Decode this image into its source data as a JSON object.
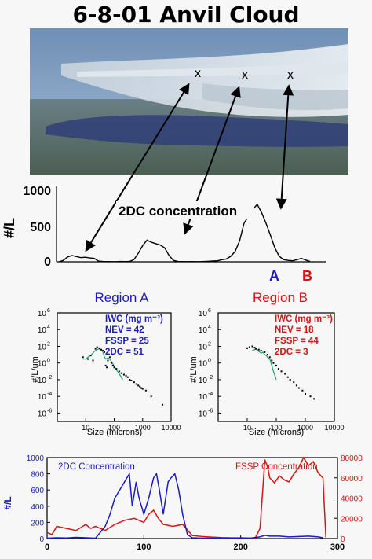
{
  "title": "6-8-01 Anvil Cloud",
  "photo_markers": [
    "x",
    "x",
    "x"
  ],
  "colors": {
    "blue": "#1a1acc",
    "red": "#dd1111",
    "green": "#2ea86f",
    "black": "#000000"
  },
  "chart_data": [
    {
      "type": "line",
      "ylabel": "#/L",
      "yticks": [
        "0",
        "500",
        "1000"
      ],
      "ylim": [
        0,
        1100
      ],
      "xlim": [
        0,
        300
      ],
      "annotation": "2DC concentration",
      "region_labels": [
        "A",
        "B"
      ],
      "x": [
        0,
        5,
        10,
        15,
        20,
        25,
        30,
        35,
        40,
        45,
        50,
        55,
        60,
        65,
        70,
        75,
        80,
        85,
        90,
        95,
        100,
        105,
        110,
        115,
        120,
        125,
        130,
        135,
        140,
        145,
        150,
        155,
        160,
        165,
        170,
        175,
        180,
        185,
        190,
        195,
        200,
        205,
        210,
        215,
        220,
        225,
        230,
        235,
        240,
        245,
        250,
        255,
        260,
        265,
        270,
        275,
        280,
        285
      ],
      "values": [
        0,
        20,
        70,
        90,
        75,
        60,
        65,
        55,
        50,
        10,
        5,
        3,
        2,
        2,
        5,
        3,
        4,
        30,
        120,
        230,
        310,
        280,
        260,
        240,
        200,
        90,
        20,
        5,
        3,
        2,
        3,
        2,
        2,
        5,
        8,
        12,
        15,
        30,
        40,
        80,
        150,
        300,
        550,
        650,
        750,
        820,
        700,
        550,
        380,
        200,
        80,
        30,
        20,
        15,
        30,
        50,
        25,
        5
      ]
    },
    {
      "type": "scatter",
      "title": "Region  A",
      "xlabel": "Size (microns)",
      "ylabel": "#/L/um",
      "xticks": [
        "10",
        "100",
        "1000",
        "10000"
      ],
      "yticks": [
        "10",
        "10",
        "10",
        "10",
        "10",
        "10",
        "10"
      ],
      "ytick_exponents": [
        "6",
        "4",
        "2",
        "0",
        "-2",
        "-4",
        "-6"
      ],
      "xlim": [
        1,
        10000
      ],
      "ylim": [
        1e-07,
        1000000.0
      ],
      "scale": "log-log",
      "legend": [
        "IWC (mg m⁻³)",
        "NEV = 42",
        "FSSP = 25",
        "2DC = 51"
      ],
      "points_x": [
        8,
        12,
        15,
        18,
        22,
        25,
        30,
        35,
        40,
        45,
        50,
        55,
        60,
        70,
        80,
        90,
        100,
        120,
        150,
        180,
        220,
        260,
        300,
        350,
        400,
        500,
        600,
        700,
        800,
        900,
        1000,
        1300,
        2000,
        5000
      ],
      "points_y": [
        5,
        3,
        8,
        2,
        50,
        80,
        60,
        40,
        30,
        20,
        0.5,
        0.3,
        2,
        5,
        1,
        0.5,
        0.3,
        0.2,
        0.1,
        0.06,
        0.04,
        0.03,
        0.02,
        0.01,
        0.008,
        0.005,
        0.003,
        0.002,
        0.0015,
        0.001,
        0.0008,
        0.0005,
        0.0001,
        1e-05
      ],
      "line_x": [
        8,
        10,
        12,
        15,
        18,
        20,
        25,
        30,
        35,
        40,
        45,
        50,
        60,
        70,
        80,
        90,
        100,
        120,
        150,
        200
      ],
      "line_y": [
        3,
        3,
        5,
        8,
        15,
        25,
        40,
        50,
        35,
        20,
        6,
        3,
        4,
        3,
        1.5,
        0.8,
        0.4,
        0.15,
        0.05,
        0.01
      ]
    },
    {
      "type": "scatter",
      "title": "Region  B",
      "xlabel": "Size (microns)",
      "ylabel": "#/L/um",
      "xticks": [
        "10",
        "100",
        "1000",
        "10000"
      ],
      "yticks": [
        "10",
        "10",
        "10",
        "10",
        "10",
        "10",
        "10"
      ],
      "ytick_exponents": [
        "6",
        "4",
        "2",
        "0",
        "-2",
        "-4",
        "-6"
      ],
      "xlim": [
        1,
        10000
      ],
      "ylim": [
        1e-07,
        1000000.0
      ],
      "scale": "log-log",
      "legend": [
        "IWC (mg m⁻³)",
        "NEV = 18",
        "FSSP = 44",
        "2DC = 3"
      ],
      "points_x": [
        10,
        12,
        15,
        18,
        20,
        25,
        30,
        40,
        50,
        60,
        70,
        80,
        100,
        120,
        150,
        200,
        250,
        300,
        400,
        500,
        600,
        800,
        1000,
        1500,
        2000
      ],
      "points_y": [
        60,
        80,
        100,
        70,
        50,
        40,
        30,
        20,
        10,
        5,
        2,
        1,
        0.5,
        0.2,
        0.1,
        0.05,
        0.02,
        0.01,
        0.005,
        0.002,
        0.001,
        0.0005,
        0.0002,
        0.0001,
        5e-05
      ],
      "line_x": [
        15,
        18,
        20,
        25,
        30,
        35,
        40,
        45,
        50,
        60,
        70,
        80,
        100
      ],
      "line_y": [
        30,
        40,
        50,
        25,
        15,
        20,
        10,
        8,
        5,
        3,
        0.5,
        0.1,
        0.01
      ]
    },
    {
      "type": "line",
      "xlim": [
        0,
        300
      ],
      "xticks": [
        "0",
        "100",
        "200",
        "300"
      ],
      "y_left_label": "#/L",
      "y_left_ticks": [
        "0",
        "200",
        "400",
        "600",
        "800",
        "1000"
      ],
      "y_left_lim": [
        0,
        1000
      ],
      "y_right_ticks": [
        "0",
        "20000",
        "40000",
        "60000",
        "80000"
      ],
      "y_right_lim": [
        0,
        80000
      ],
      "series": [
        {
          "name": "2DC Concentration",
          "axis": "left",
          "color": "#1a1acc",
          "x": [
            0,
            10,
            20,
            30,
            40,
            50,
            60,
            65,
            70,
            75,
            80,
            85,
            88,
            92,
            95,
            100,
            105,
            110,
            113,
            116,
            120,
            125,
            128,
            132,
            136,
            140,
            145,
            150,
            160,
            170,
            180,
            190,
            200,
            210,
            220,
            225,
            230,
            240,
            250,
            260,
            270,
            280,
            285
          ],
          "values": [
            5,
            10,
            8,
            15,
            10,
            5,
            150,
            300,
            500,
            600,
            700,
            800,
            400,
            700,
            500,
            300,
            500,
            750,
            800,
            600,
            300,
            700,
            750,
            800,
            600,
            300,
            50,
            10,
            5,
            5,
            5,
            3,
            10,
            5,
            20,
            40,
            30,
            30,
            20,
            25,
            30,
            20,
            10
          ]
        },
        {
          "name": "FSSP Concentration",
          "axis": "right",
          "color": "#dd1111",
          "x": [
            0,
            5,
            10,
            20,
            30,
            40,
            45,
            50,
            60,
            70,
            80,
            90,
            100,
            105,
            110,
            115,
            120,
            130,
            140,
            150,
            160,
            170,
            180,
            190,
            200,
            210,
            215,
            220,
            225,
            228,
            230,
            235,
            240,
            245,
            250,
            255,
            260,
            265,
            270,
            275,
            280,
            285,
            288
          ],
          "values": [
            6000,
            4000,
            12000,
            10000,
            8000,
            14000,
            10000,
            12000,
            8000,
            14000,
            18000,
            20000,
            16000,
            24000,
            28000,
            20000,
            14000,
            12000,
            14000,
            3000,
            2000,
            1500,
            1000,
            800,
            600,
            500,
            400,
            10000,
            78000,
            70000,
            60000,
            55000,
            62000,
            58000,
            56000,
            64000,
            70000,
            80000,
            72000,
            76000,
            65000,
            60000,
            1000
          ]
        }
      ]
    }
  ]
}
